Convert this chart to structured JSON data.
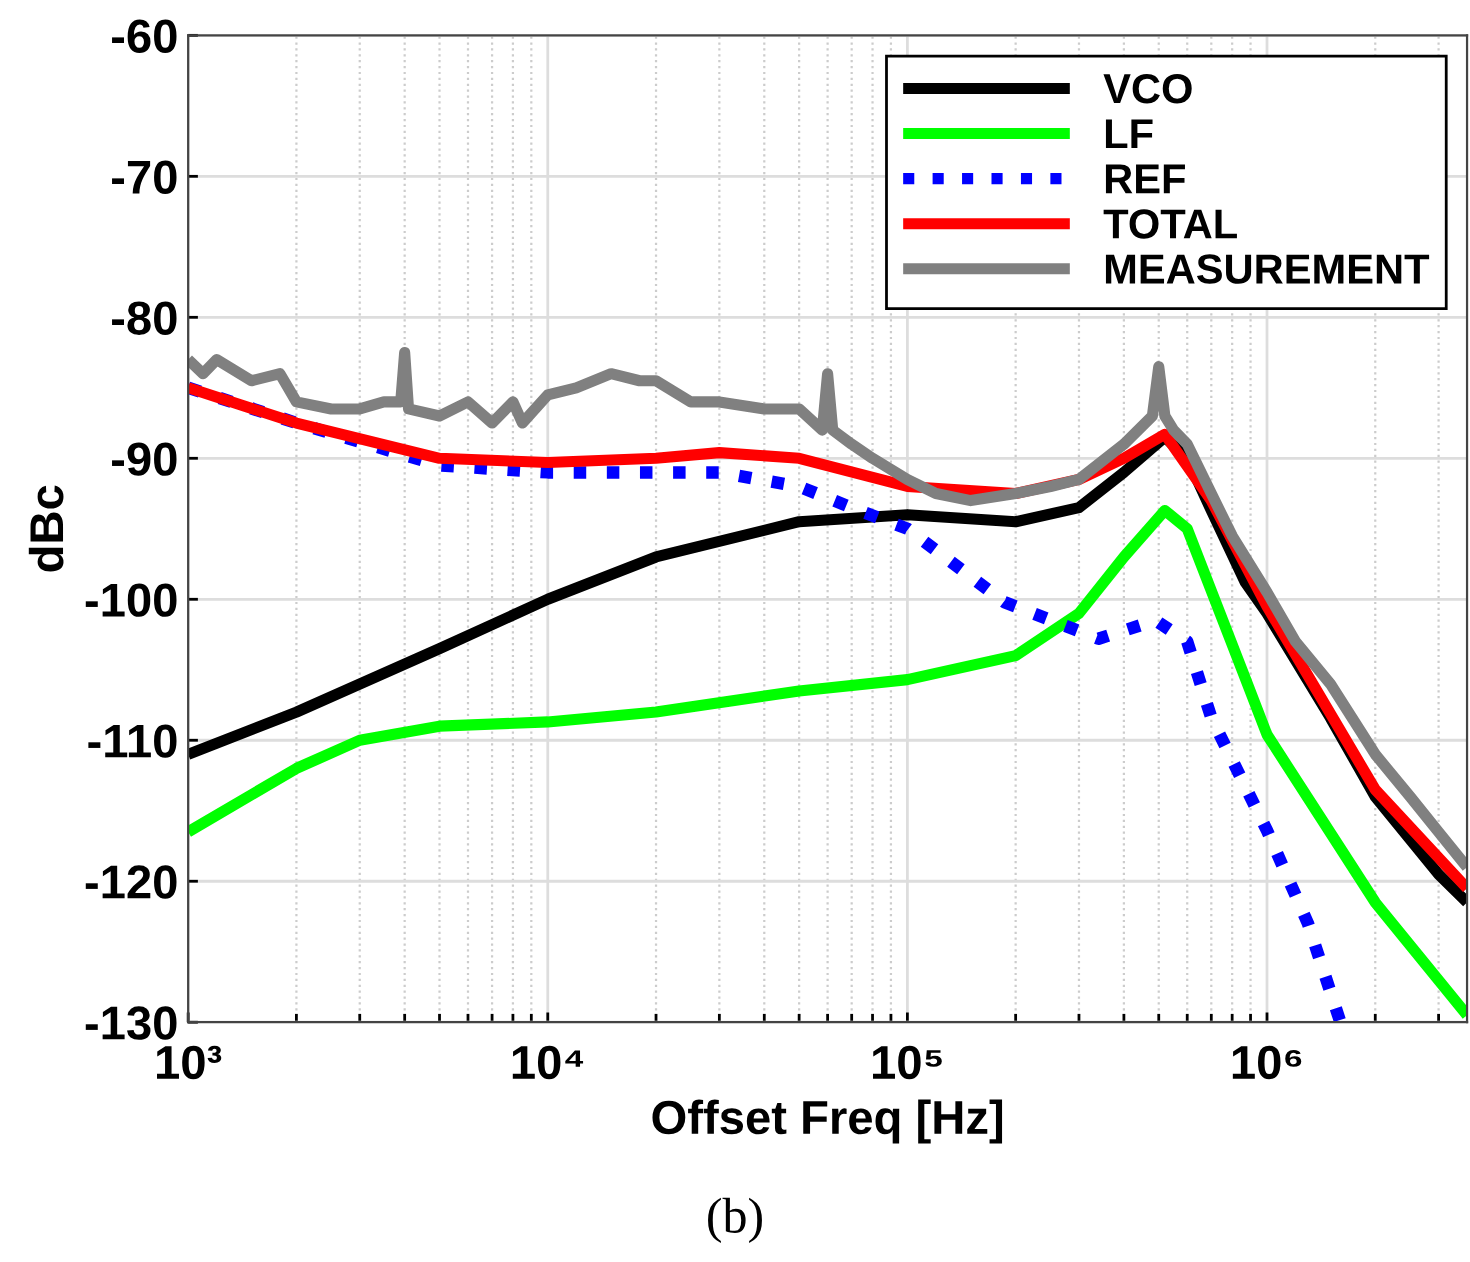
{
  "chart_data": {
    "type": "line",
    "xlabel": "Offset Freq [Hz]",
    "ylabel": "dBc",
    "log": "x",
    "grid": true,
    "legend": "top right",
    "line_style": "solid",
    "marker": "none",
    "xlim": [
      1000,
      3600000
    ],
    "xticks": [
      {
        "value": 1000,
        "label": "10³"
      },
      {
        "value": 10000,
        "label": "10⁴"
      },
      {
        "value": 100000,
        "label": "10⁵"
      },
      {
        "value": 1000000,
        "label": "10⁶"
      }
    ],
    "ylim": [
      -130,
      -60
    ],
    "yticks": [
      -130,
      -120,
      -110,
      -100,
      -90,
      -80,
      -70,
      -60
    ],
    "annotations": [
      "(b)"
    ],
    "series": [
      {
        "name": "VCO",
        "color": "#000000",
        "x": [
          1000,
          2000,
          5000,
          10000,
          20000,
          50000,
          100000,
          200000,
          300000,
          400000,
          520000,
          600000,
          700000,
          870000,
          1000000,
          1500000,
          2000000,
          3000000,
          3600000
        ],
        "values": [
          -111,
          -108,
          -103.5,
          -100,
          -97,
          -94.5,
          -94,
          -94.5,
          -93.5,
          -91,
          -88.5,
          -90,
          -93.7,
          -98.8,
          -101,
          -108.4,
          -114,
          -119.5,
          -121.5
        ]
      },
      {
        "name": "LF",
        "color": "#00ff00",
        "x": [
          1000,
          2000,
          3000,
          5000,
          10000,
          20000,
          50000,
          100000,
          200000,
          300000,
          400000,
          520000,
          600000,
          870000,
          1000000,
          2000000,
          3600000
        ],
        "values": [
          -116.5,
          -112,
          -110,
          -109,
          -108.7,
          -108,
          -106.5,
          -105.7,
          -104,
          -101,
          -97,
          -93.7,
          -95,
          -105.6,
          -109.6,
          -121.5,
          -129.5
        ]
      },
      {
        "name": "REF",
        "color": "#0000ff",
        "line_style": "dotted",
        "x": [
          1000,
          2000,
          5000,
          10000,
          20000,
          30000,
          50000,
          70000,
          100000,
          186000,
          340000,
          490000,
          600000,
          700000,
          1000000,
          1300000,
          1600000
        ],
        "values": [
          -85,
          -87.5,
          -90.5,
          -91,
          -91,
          -91,
          -92,
          -93.5,
          -95,
          -100.2,
          -102.8,
          -101.5,
          -103,
          -108.4,
          -116.4,
          -123,
          -130
        ]
      },
      {
        "name": "TOTAL",
        "color": "#ff0000",
        "x": [
          1000,
          2000,
          5000,
          10000,
          20000,
          30000,
          50000,
          100000,
          200000,
          300000,
          400000,
          520000,
          700000,
          1000000,
          2000000,
          3600000
        ],
        "values": [
          -85,
          -87.5,
          -90,
          -90.3,
          -90,
          -89.6,
          -90,
          -92,
          -92.5,
          -91.5,
          -90,
          -88.3,
          -93,
          -100.5,
          -113.5,
          -120.5
        ]
      },
      {
        "name": "MEASUREMENT",
        "color": "#808080",
        "x": [
          1000,
          1100,
          1200,
          1500,
          1800,
          2000,
          2500,
          3000,
          3500,
          3900,
          4000,
          4100,
          5000,
          6000,
          7000,
          8000,
          8500,
          10000,
          12000,
          15000,
          18000,
          20000,
          25000,
          30000,
          40000,
          50000,
          58000,
          60000,
          62000,
          70000,
          80000,
          100000,
          120000,
          150000,
          200000,
          250000,
          300000,
          400000,
          480000,
          500000,
          520000,
          550000,
          600000,
          700000,
          800000,
          1000000,
          1200000,
          1500000,
          2000000,
          2500000,
          3000000,
          3600000
        ],
        "values": [
          -83,
          -84,
          -83,
          -84.5,
          -84,
          -86,
          -86.5,
          -86.5,
          -86,
          -86,
          -82.5,
          -86.5,
          -87,
          -86,
          -87.5,
          -86,
          -87.5,
          -85.5,
          -85,
          -84,
          -84.5,
          -84.5,
          -86,
          -86,
          -86.5,
          -86.5,
          -88,
          -84,
          -88,
          -89,
          -90,
          -91.5,
          -92.5,
          -93,
          -92.5,
          -92,
          -91.5,
          -89,
          -87,
          -83.5,
          -87,
          -88,
          -89,
          -92.5,
          -95.5,
          -99.5,
          -103,
          -106,
          -111,
          -114,
          -116.5,
          -119
        ]
      }
    ]
  }
}
